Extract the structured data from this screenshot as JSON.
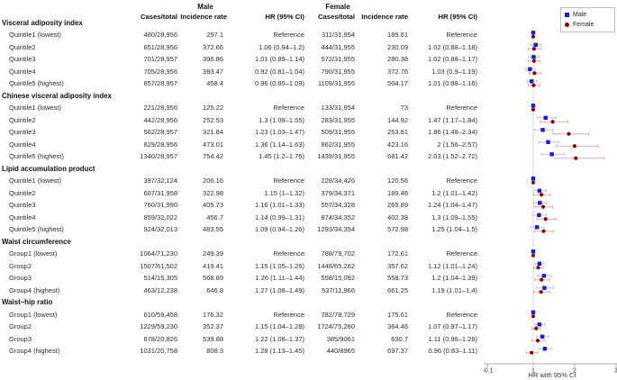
{
  "figure": {
    "group_headers": {
      "male": "Male",
      "female": "Female"
    },
    "columns": {
      "cases": "Cases/total",
      "incidence": "Incidence rate",
      "hr": "HR (95% CI)"
    },
    "axis": {
      "label": "HR with 95% CI",
      "ticks": [
        "-0.1",
        "1",
        "2",
        "3"
      ],
      "tick_values": [
        -0.1,
        1,
        2,
        3
      ],
      "xmin": -0.1,
      "xmax": 3,
      "refline": 1
    },
    "legend": {
      "items": [
        {
          "label": "Male",
          "marker": "square",
          "color": "#1b1bd1"
        },
        {
          "label": "Female",
          "marker": "circle",
          "color": "#8b0000"
        }
      ]
    },
    "colors": {
      "male_marker": "#1b1bd1",
      "female_marker": "#8b0000",
      "male_ci": "#c6c6c6",
      "female_ci": "#dcaeae",
      "refline": "#dcdcdc",
      "axis": "#b0b0b0",
      "tick_text": "#333333"
    }
  },
  "chart_data": {
    "type": "scatter",
    "subtype": "forest-plot",
    "xlabel": "HR with 95% CI",
    "xlim": [
      -0.1,
      3
    ],
    "series": [
      "Male",
      "Female"
    ],
    "legend_position": "top-right",
    "sections": [
      {
        "title": "Visceral adiposity index",
        "rows": [
          {
            "label": "Quintile1 (lowest)",
            "male": {
              "cases": "480/28,956",
              "incidence": "297.1",
              "hr_text": "Reference",
              "hr": 1,
              "lo": 1,
              "hi": 1
            },
            "female": {
              "cases": "311/31,954",
              "incidence": "189.61",
              "hr_text": "Reference",
              "hr": 1,
              "lo": 1,
              "hi": 1
            }
          },
          {
            "label": "Quintile2",
            "male": {
              "cases": "651/28,956",
              "incidence": "372.66",
              "hr_text": "1.06 (0.94–1.2)",
              "hr": 1.06,
              "lo": 0.94,
              "hi": 1.2
            },
            "female": {
              "cases": "444/31,955",
              "incidence": "230.09",
              "hr_text": "1.02 (0.88–1.18)",
              "hr": 1.02,
              "lo": 0.88,
              "hi": 1.18
            }
          },
          {
            "label": "Quintile3",
            "male": {
              "cases": "701/28,957",
              "incidence": "396.86",
              "hr_text": "1.01 (0.89–1.14)",
              "hr": 1.01,
              "lo": 0.89,
              "hi": 1.14
            },
            "female": {
              "cases": "572/31,955",
              "incidence": "280.38",
              "hr_text": "1.02 (0.88–1.17)",
              "hr": 1.02,
              "lo": 0.88,
              "hi": 1.17
            }
          },
          {
            "label": "Quintile4",
            "male": {
              "cases": "705/28,956",
              "incidence": "393.47",
              "hr_text": "0.92 (0.81–1.04)",
              "hr": 0.92,
              "lo": 0.81,
              "hi": 1.04
            },
            "female": {
              "cases": "790/31,955",
              "incidence": "372.76",
              "hr_text": "1.03 (0.9–1.19)",
              "hr": 1.03,
              "lo": 0.9,
              "hi": 1.19
            }
          },
          {
            "label": "Quintile5 (highest)",
            "male": {
              "cases": "857/28,957",
              "incidence": "458.4",
              "hr_text": "0.96 (0.85–1.09)",
              "hr": 0.96,
              "lo": 0.85,
              "hi": 1.09
            },
            "female": {
              "cases": "1109/31,955",
              "incidence": "504.17",
              "hr_text": "1.01 (0.88–1.16)",
              "hr": 1.01,
              "lo": 0.88,
              "hi": 1.16
            }
          }
        ]
      },
      {
        "title": "Chinese visceral adiposity index",
        "rows": [
          {
            "label": "Quintile1 (lowest)",
            "male": {
              "cases": "221/28,956",
              "incidence": "125.22",
              "hr_text": "Reference",
              "hr": 1,
              "lo": 1,
              "hi": 1
            },
            "female": {
              "cases": "133/31,954",
              "incidence": "73",
              "hr_text": "Reference",
              "hr": 1,
              "lo": 1,
              "hi": 1
            }
          },
          {
            "label": "Quintile2",
            "male": {
              "cases": "442/28,956",
              "incidence": "252.53",
              "hr_text": "1.3 (1.09–1.55)",
              "hr": 1.3,
              "lo": 1.09,
              "hi": 1.55
            },
            "female": {
              "cases": "283/31,955",
              "incidence": "144.92",
              "hr_text": "1.47 (1.17–1.84)",
              "hr": 1.47,
              "lo": 1.17,
              "hi": 1.84
            }
          },
          {
            "label": "Quintile3",
            "male": {
              "cases": "562/28,957",
              "incidence": "321.84",
              "hr_text": "1.23 (1.03–1.47)",
              "hr": 1.23,
              "lo": 1.03,
              "hi": 1.47
            },
            "female": {
              "cases": "509/31,955",
              "incidence": "253.81",
              "hr_text": "1.86 (1.48–2.34)",
              "hr": 1.86,
              "lo": 1.48,
              "hi": 2.34
            }
          },
          {
            "label": "Quintile4",
            "male": {
              "cases": "829/28,956",
              "incidence": "473.01",
              "hr_text": "1.36 (1.14–1.63)",
              "hr": 1.36,
              "lo": 1.14,
              "hi": 1.63
            },
            "female": {
              "cases": "862/31,955",
              "incidence": "423.16",
              "hr_text": "2 (1.56–2.57)",
              "hr": 2,
              "lo": 1.56,
              "hi": 2.57
            }
          },
          {
            "label": "Quintile5 (highest)",
            "male": {
              "cases": "1340/28,957",
              "incidence": "754.42",
              "hr_text": "1.45 (1.2–1.76)",
              "hr": 1.45,
              "lo": 1.2,
              "hi": 1.76
            },
            "female": {
              "cases": "1439/31,955",
              "incidence": "681.42",
              "hr_text": "2.03 (1.52–2.72)",
              "hr": 2.03,
              "lo": 1.52,
              "hi": 2.72
            }
          }
        ]
      },
      {
        "title": "Lipid accumulation product",
        "rows": [
          {
            "label": "Quintile1 (lowest)",
            "male": {
              "cases": "397/32,124",
              "incidence": "206.16",
              "hr_text": "Reference",
              "hr": 1,
              "lo": 1,
              "hi": 1
            },
            "female": {
              "cases": "228/34,426",
              "incidence": "120.56",
              "hr_text": "Reference",
              "hr": 1,
              "lo": 1,
              "hi": 1
            }
          },
          {
            "label": "Quintile2",
            "male": {
              "cases": "607/31,958",
              "incidence": "322.98",
              "hr_text": "1.15 (1–1.32)",
              "hr": 1.15,
              "lo": 1,
              "hi": 1.32
            },
            "female": {
              "cases": "379/34,371",
              "incidence": "189.48",
              "hr_text": "1.2 (1.01–1.42)",
              "hr": 1.2,
              "lo": 1.01,
              "hi": 1.42
            }
          },
          {
            "label": "Quintile3",
            "male": {
              "cases": "760/31,990",
              "incidence": "405.73",
              "hr_text": "1.16 (1.01–1.33)",
              "hr": 1.16,
              "lo": 1.01,
              "hi": 1.33
            },
            "female": {
              "cases": "557/34,328",
              "incidence": "265.89",
              "hr_text": "1.24 (1.04–1.47)",
              "hr": 1.24,
              "lo": 1.04,
              "hi": 1.47
            }
          },
          {
            "label": "Quintile4",
            "male": {
              "cases": "859/32,022",
              "incidence": "456.7",
              "hr_text": "1.14 (0.99–1.31)",
              "hr": 1.14,
              "lo": 0.99,
              "hi": 1.31
            },
            "female": {
              "cases": "874/34,352",
              "incidence": "402.38",
              "hr_text": "1.3 (1.09–1.55)",
              "hr": 1.3,
              "lo": 1.09,
              "hi": 1.55
            }
          },
          {
            "label": "Quintile5 (highest)",
            "male": {
              "cases": "924/32,013",
              "incidence": "483.55",
              "hr_text": "1.09 (0.94–1.26)",
              "hr": 1.09,
              "lo": 0.94,
              "hi": 1.26
            },
            "female": {
              "cases": "1293/34,354",
              "incidence": "572.98",
              "hr_text": "1.25 (1.04–1.5)",
              "hr": 1.25,
              "lo": 1.04,
              "hi": 1.5
            }
          }
        ]
      },
      {
        "title": "Waist circumference",
        "rows": [
          {
            "label": "Group1 (lowest)",
            "male": {
              "cases": "1064/71,230",
              "incidence": "249.39",
              "hr_text": "Reference",
              "hr": 1,
              "lo": 1,
              "hi": 1
            },
            "female": {
              "cases": "788/79,702",
              "incidence": "172.61",
              "hr_text": "Reference",
              "hr": 1,
              "lo": 1,
              "hi": 1
            }
          },
          {
            "label": "Group2",
            "male": {
              "cases": "1507/61,502",
              "incidence": "419.41",
              "hr_text": "1.15 (1.05–1.26)",
              "hr": 1.15,
              "lo": 1.05,
              "hi": 1.26
            },
            "female": {
              "cases": "1448/65,262",
              "incidence": "357.62",
              "hr_text": "1.12 (1.01–1.24)",
              "hr": 1.12,
              "lo": 1.01,
              "hi": 1.24
            }
          },
          {
            "label": "Group3",
            "male": {
              "cases": "514/15,305",
              "incidence": "568.89",
              "hr_text": "1.26 (1.11–1.44)",
              "hr": 1.26,
              "lo": 1.11,
              "hi": 1.44
            },
            "female": {
              "cases": "558/15,092",
              "incidence": "558.73",
              "hr_text": "1.2 (1.04–1.39)",
              "hr": 1.2,
              "lo": 1.04,
              "hi": 1.39
            }
          },
          {
            "label": "Group4 (highest)",
            "male": {
              "cases": "463/12,238",
              "incidence": "646.8",
              "hr_text": "1.27 (1.08–1.49)",
              "hr": 1.27,
              "lo": 1.08,
              "hi": 1.49
            },
            "female": {
              "cases": "537/11,966",
              "incidence": "661.25",
              "hr_text": "1.19 (1.01–1.4)",
              "hr": 1.19,
              "lo": 1.01,
              "hi": 1.4
            }
          }
        ]
      },
      {
        "title": "Waist–hip ratio",
        "rows": [
          {
            "label": "Group1 (lowest)",
            "male": {
              "cases": "610/59,458",
              "incidence": "176.32",
              "hr_text": "Reference",
              "hr": 1,
              "lo": 1,
              "hi": 1
            },
            "female": {
              "cases": "782/78,729",
              "incidence": "175.61",
              "hr_text": "Reference",
              "hr": 1,
              "lo": 1,
              "hi": 1
            }
          },
          {
            "label": "Group2",
            "male": {
              "cases": "1229/59,230",
              "incidence": "352.37",
              "hr_text": "1.15 (1.04–1.28)",
              "hr": 1.15,
              "lo": 1.04,
              "hi": 1.28
            },
            "female": {
              "cases": "1724/75,260",
              "incidence": "364.46",
              "hr_text": "1.07 (0.97–1.17)",
              "hr": 1.07,
              "lo": 0.97,
              "hi": 1.17
            }
          },
          {
            "label": "Group3",
            "male": {
              "cases": "678/20,826",
              "incidence": "539.88",
              "hr_text": "1.22 (1.08–1.37)",
              "hr": 1.22,
              "lo": 1.08,
              "hi": 1.37
            },
            "female": {
              "cases": "385/9061",
              "incidence": "630.7",
              "hr_text": "1.11 (0.96–1.28)",
              "hr": 1.11,
              "lo": 0.96,
              "hi": 1.28
            }
          },
          {
            "label": "Group4 (highest)",
            "male": {
              "cases": "1031/20,758",
              "incidence": "808.3",
              "hr_text": "1.28 (1.13–1.45)",
              "hr": 1.28,
              "lo": 1.13,
              "hi": 1.45
            },
            "female": {
              "cases": "440/8965",
              "incidence": "697.37",
              "hr_text": "0.96 (0.83–1.11)",
              "hr": 0.96,
              "lo": 0.83,
              "hi": 1.11
            }
          }
        ]
      }
    ]
  }
}
